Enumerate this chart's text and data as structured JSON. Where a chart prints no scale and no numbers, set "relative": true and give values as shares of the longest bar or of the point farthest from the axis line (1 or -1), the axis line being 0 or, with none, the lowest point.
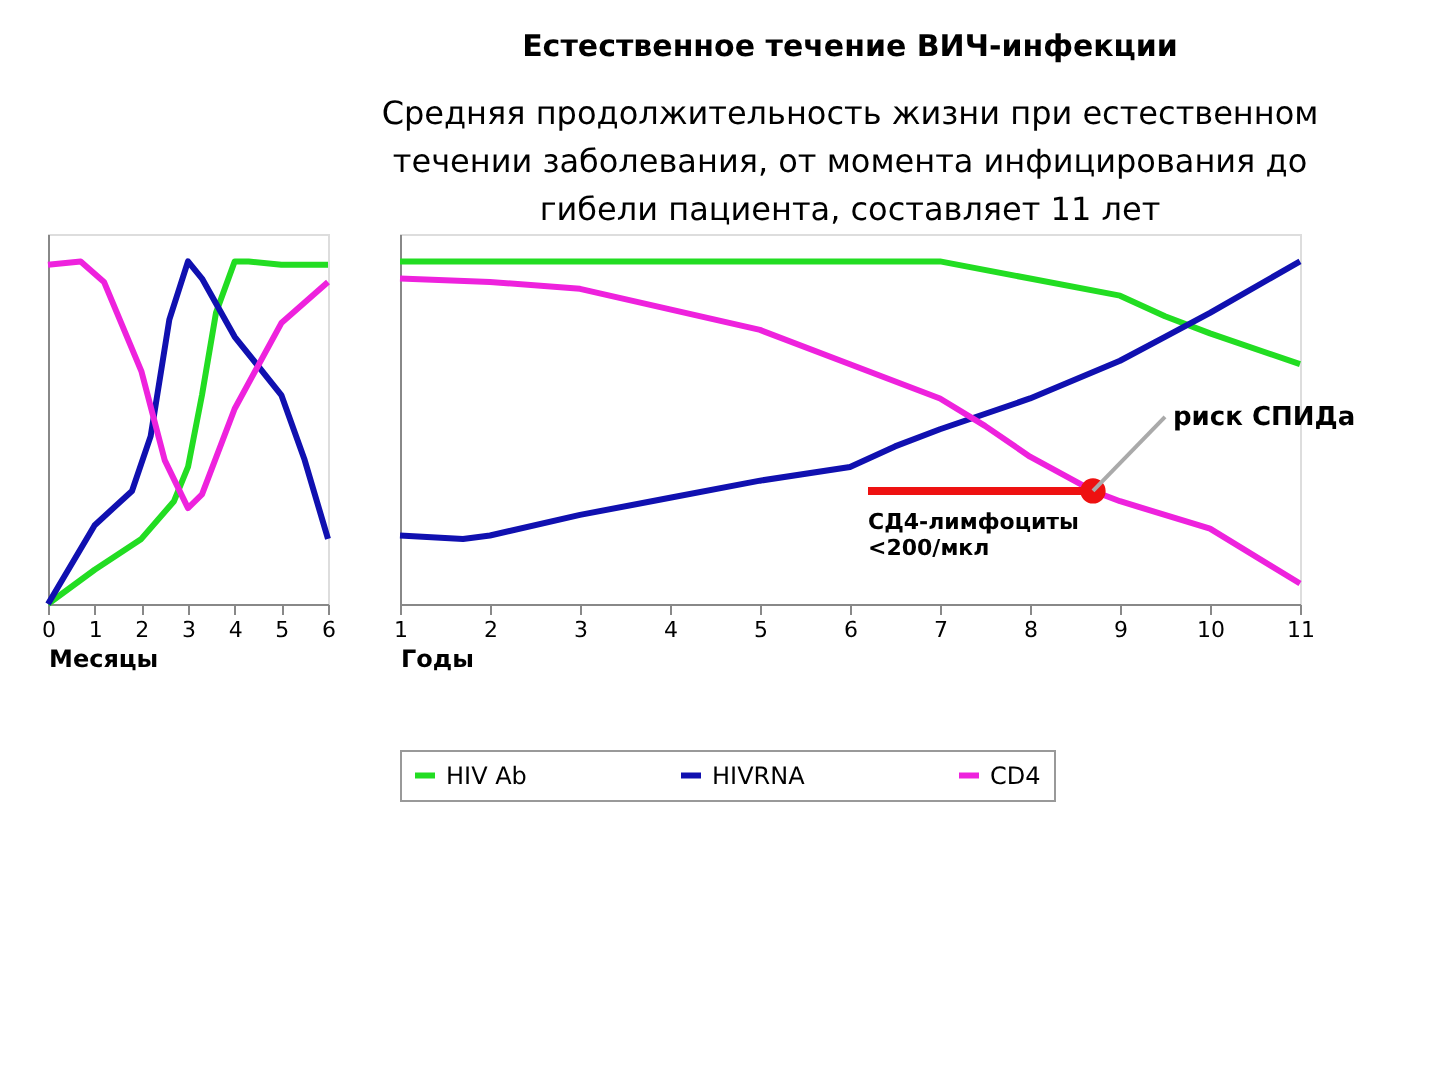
{
  "chart_data": [
    {
      "type": "line",
      "xlabel": "Месяцы",
      "relative": true,
      "xlim": [
        0,
        6
      ],
      "xticks": [
        0,
        1,
        2,
        3,
        4,
        5,
        6
      ],
      "grid": false,
      "series": [
        {
          "color": "#22dd22",
          "x": [
            0,
            1,
            2,
            2.7,
            3,
            3.3,
            3.6,
            4,
            4.3,
            5,
            6
          ],
          "values": [
            0,
            0.1,
            0.19,
            0.3,
            0.4,
            0.61,
            0.85,
            1.0,
            1.0,
            0.99,
            0.99
          ]
        },
        {
          "color": "#1010b0",
          "x": [
            0,
            1,
            1.8,
            2.2,
            2.6,
            3,
            3.3,
            4,
            5,
            5.5,
            6
          ],
          "values": [
            0,
            0.23,
            0.33,
            0.49,
            0.83,
            1.0,
            0.95,
            0.78,
            0.61,
            0.42,
            0.19
          ]
        },
        {
          "color": "#ee22dd",
          "x": [
            0,
            0.7,
            1.2,
            2,
            2.5,
            3,
            3.3,
            4,
            5,
            6
          ],
          "values": [
            0.99,
            1.0,
            0.94,
            0.68,
            0.42,
            0.28,
            0.32,
            0.57,
            0.82,
            0.94
          ]
        }
      ]
    },
    {
      "type": "line",
      "title": "Естественное течение ВИЧ-инфекции",
      "subtitle": "Средняя продолжительность жизни при естественном течении заболевания, от момента инфицирования до гибели пациента, составляет 11 лет",
      "xlabel": "Годы",
      "relative": true,
      "xlim": [
        1,
        11
      ],
      "xticks": [
        1,
        2,
        3,
        4,
        5,
        6,
        7,
        8,
        9,
        10,
        11
      ],
      "grid": false,
      "legend": "bottom",
      "annotations": [
        {
          "text": "риск СПИДа",
          "x": 8.7,
          "y": 0.33
        }
      ],
      "series": [
        {
          "name": "HIV Ab",
          "color": "#22dd22",
          "x": [
            1,
            2,
            3,
            4,
            5,
            6,
            6.8,
            7,
            8,
            9,
            9.5,
            10,
            11
          ],
          "values": [
            1.0,
            1.0,
            1.0,
            1.0,
            1.0,
            1.0,
            1.0,
            1.0,
            0.95,
            0.9,
            0.84,
            0.79,
            0.7
          ]
        },
        {
          "name": "HIVRNA",
          "color": "#1010b0",
          "x": [
            1,
            1.7,
            2,
            3,
            4,
            5,
            6,
            6.5,
            7,
            8,
            9,
            9.5,
            10,
            11
          ],
          "values": [
            0.2,
            0.19,
            0.2,
            0.26,
            0.31,
            0.36,
            0.4,
            0.46,
            0.51,
            0.6,
            0.71,
            0.78,
            0.85,
            1.0
          ]
        },
        {
          "name": "CD4",
          "color": "#ee22dd",
          "x": [
            1,
            2,
            3,
            4,
            5,
            6,
            7,
            7.5,
            8,
            8.7,
            9,
            10,
            11
          ],
          "values": [
            0.95,
            0.94,
            0.92,
            0.86,
            0.8,
            0.7,
            0.6,
            0.52,
            0.43,
            0.33,
            0.3,
            0.22,
            0.06
          ]
        },
        {
          "name": "СД4-лимфоциты <200/мкл",
          "type": "line",
          "color": "#ee1111",
          "x": [
            6.2,
            8.7
          ],
          "values": [
            0.33,
            0.33
          ]
        },
        {
          "type": "scatter",
          "color": "#ee1111",
          "x": [
            8.7
          ],
          "values": [
            0.33
          ]
        }
      ]
    }
  ]
}
